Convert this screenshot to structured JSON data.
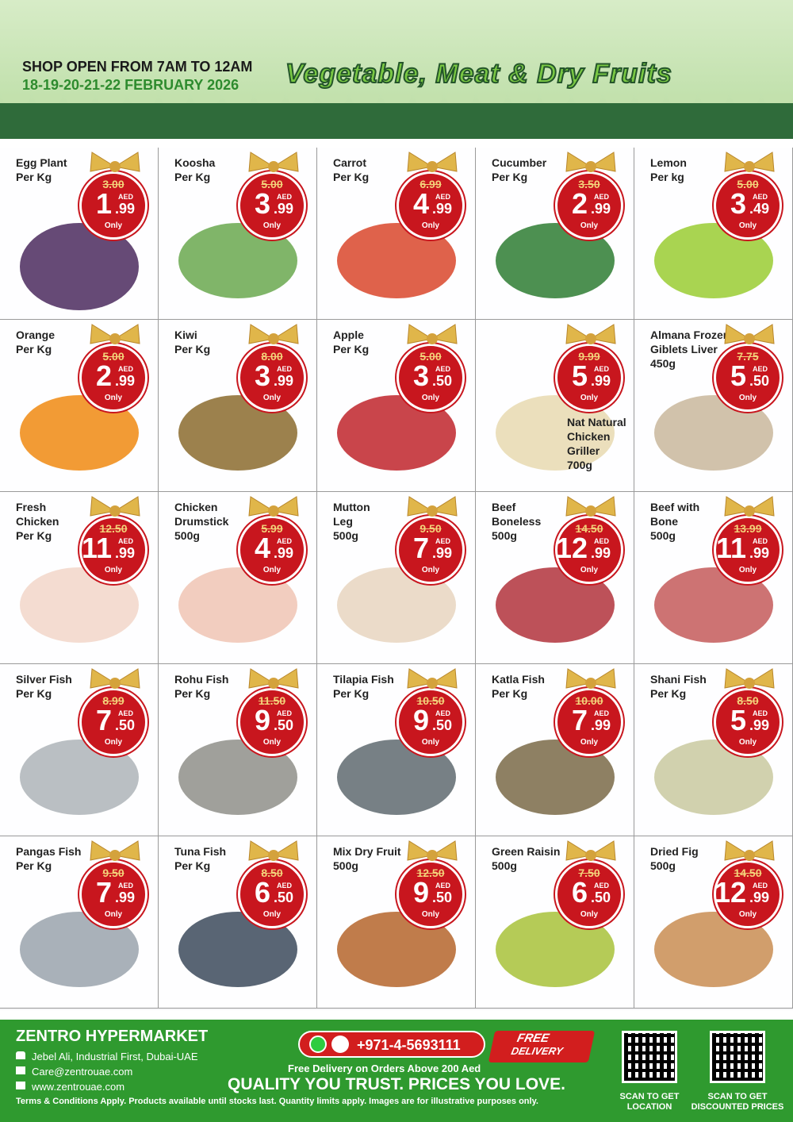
{
  "header": {
    "hours": "SHOP OPEN FROM 7AM TO 12AM",
    "dates": "18-19-20-21-22 FEBRUARY 2026",
    "title": "Vegetable, Meat & Dry Fruits"
  },
  "badge": {
    "currency": "AED",
    "only": "Only"
  },
  "products": [
    {
      "name": [
        "Egg Plant",
        "Per Kg"
      ],
      "old_price": "3.00",
      "price_whole": "1",
      "price_fraction": ".99"
    },
    {
      "name": [
        "Koosha",
        "Per Kg"
      ],
      "old_price": "5.00",
      "price_whole": "3",
      "price_fraction": ".99"
    },
    {
      "name": [
        "Carrot",
        "Per Kg"
      ],
      "old_price": "6.99",
      "price_whole": "4",
      "price_fraction": ".99"
    },
    {
      "name": [
        "Cucumber",
        "Per Kg"
      ],
      "old_price": "3.50",
      "price_whole": "2",
      "price_fraction": ".99"
    },
    {
      "name": [
        "Lemon",
        "Per kg"
      ],
      "old_price": "5.00",
      "price_whole": "3",
      "price_fraction": ".49"
    },
    {
      "name": [
        "Orange",
        "Per Kg"
      ],
      "old_price": "5.00",
      "price_whole": "2",
      "price_fraction": ".99"
    },
    {
      "name": [
        "Kiwi",
        "Per Kg"
      ],
      "old_price": "8.00",
      "price_whole": "3",
      "price_fraction": ".99"
    },
    {
      "name": [
        "Apple",
        "Per Kg"
      ],
      "old_price": "5.00",
      "price_whole": "3",
      "price_fraction": ".50"
    },
    {
      "name": [
        "Nat Natural",
        "Chicken",
        "Griller",
        "700g"
      ],
      "old_price": "9.99",
      "price_whole": "5",
      "price_fraction": ".99"
    },
    {
      "name": [
        "Almana Frozen",
        "Giblets Liver",
        "450g"
      ],
      "old_price": "7.75",
      "price_whole": "5",
      "price_fraction": ".50"
    },
    {
      "name": [
        "Fresh",
        "Chicken",
        "Per Kg"
      ],
      "old_price": "12.50",
      "price_whole": "11",
      "price_fraction": ".99"
    },
    {
      "name": [
        "Chicken",
        "Drumstick",
        "500g"
      ],
      "old_price": "5.99",
      "price_whole": "4",
      "price_fraction": ".99"
    },
    {
      "name": [
        "Mutton",
        "Leg",
        "500g"
      ],
      "old_price": "9.50",
      "price_whole": "7",
      "price_fraction": ".99"
    },
    {
      "name": [
        "Beef",
        "Boneless",
        "500g"
      ],
      "old_price": "14.50",
      "price_whole": "12",
      "price_fraction": ".99"
    },
    {
      "name": [
        "Beef with",
        "Bone",
        "500g"
      ],
      "old_price": "13.99",
      "price_whole": "11",
      "price_fraction": ".99"
    },
    {
      "name": [
        "Silver Fish",
        "Per Kg"
      ],
      "old_price": "8.99",
      "price_whole": "7",
      "price_fraction": ".50"
    },
    {
      "name": [
        "Rohu Fish",
        "Per Kg"
      ],
      "old_price": "11.50",
      "price_whole": "9",
      "price_fraction": ".50"
    },
    {
      "name": [
        "Tilapia Fish",
        "Per Kg"
      ],
      "old_price": "10.50",
      "price_whole": "9",
      "price_fraction": ".50"
    },
    {
      "name": [
        "Katla Fish",
        "Per Kg"
      ],
      "old_price": "10.00",
      "price_whole": "7",
      "price_fraction": ".99"
    },
    {
      "name": [
        "Shani Fish",
        "Per Kg"
      ],
      "old_price": "8.50",
      "price_whole": "5",
      "price_fraction": ".99"
    },
    {
      "name": [
        "Pangas Fish",
        "Per Kg"
      ],
      "old_price": "9.50",
      "price_whole": "7",
      "price_fraction": ".99"
    },
    {
      "name": [
        "Tuna Fish",
        "Per Kg"
      ],
      "old_price": "8.50",
      "price_whole": "6",
      "price_fraction": ".50"
    },
    {
      "name": [
        "Mix Dry Fruit",
        "500g"
      ],
      "old_price": "12.50",
      "price_whole": "9",
      "price_fraction": ".50"
    },
    {
      "name": [
        "Green Raisin",
        "500g"
      ],
      "old_price": "7.50",
      "price_whole": "6",
      "price_fraction": ".50"
    },
    {
      "name": [
        "Dried Fig",
        "500g"
      ],
      "old_price": "14.50",
      "price_whole": "12",
      "price_fraction": ".99"
    }
  ],
  "footer": {
    "store": "ZENTRO HYPERMARKET",
    "address": "Jebel Ali, Industrial First, Dubai-UAE",
    "email": "Care@zentrouae.com",
    "website": "www.zentrouae.com",
    "phone": "+971-4-5693111",
    "delivery_badge": [
      "FREE",
      "DELIVERY"
    ],
    "delivery_note": "Free Delivery on Orders Above 200 Aed",
    "slogan": "QUALITY YOU TRUST. PRICES YOU LOVE.",
    "terms": "Terms & Conditions Apply. Products available until stocks last. Quantity limits apply. Images are for illustrative purposes only.",
    "qr_location": [
      "SCAN TO GET",
      "LOCATION"
    ],
    "qr_prices": [
      "SCAN TO GET",
      "DISCOUNTED PRICES"
    ]
  }
}
